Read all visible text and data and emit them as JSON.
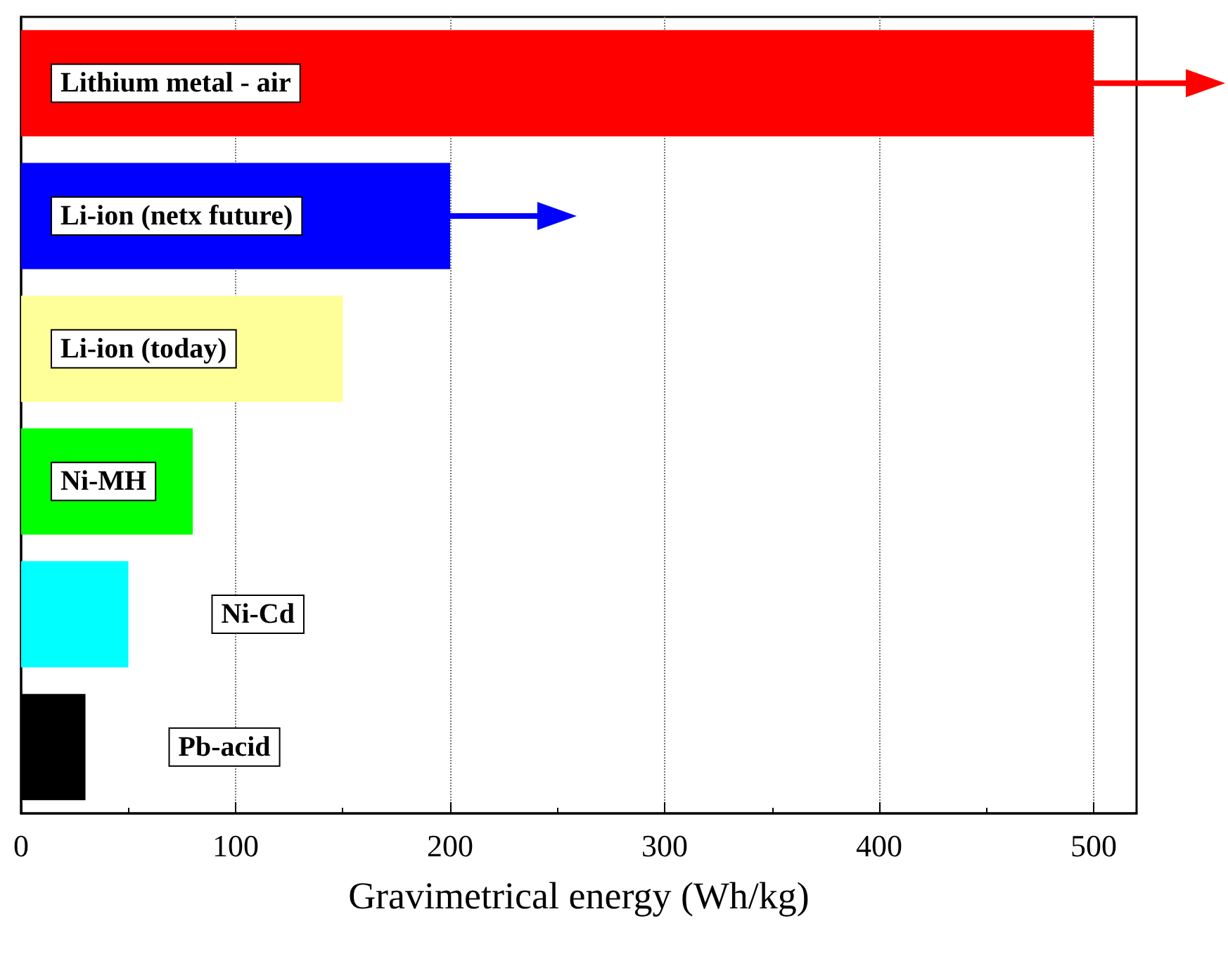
{
  "chart_data": {
    "type": "bar",
    "orientation": "horizontal",
    "xlabel": "Gravimetrical energy (Wh/kg)",
    "categories": [
      "Lithium metal - air",
      "Li-ion (netx future)",
      "Li-ion (today)",
      "Ni-MH",
      "Ni-Cd",
      "Pb-acid"
    ],
    "values": [
      500,
      200,
      150,
      80,
      50,
      30
    ],
    "colors": [
      "#ff0000",
      "#0000ff",
      "#ffff99",
      "#00ff00",
      "#00ffff",
      "#000000"
    ],
    "xlim": [
      0,
      520
    ],
    "xticks": [
      0,
      100,
      200,
      300,
      400,
      500
    ],
    "grid": "x",
    "tick_labels": "x"
  }
}
